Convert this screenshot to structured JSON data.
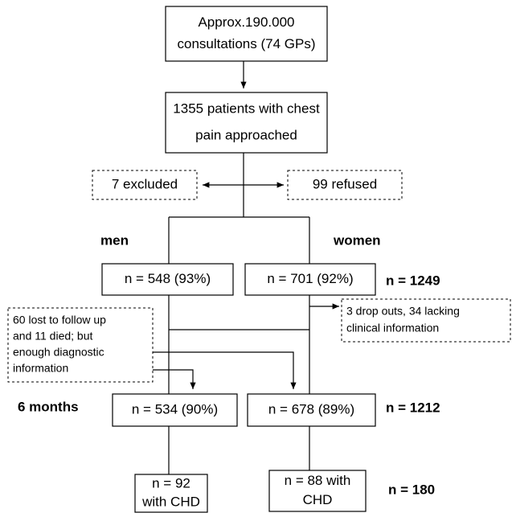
{
  "nodes": [
    {
      "lines": [
        "Approx.190.000",
        "consultations (74 GPs)"
      ]
    },
    {
      "lines": [
        "1355 patients with chest",
        "pain approached"
      ]
    },
    {
      "lines": [
        "7 excluded"
      ]
    },
    {
      "lines": [
        "99 refused"
      ]
    },
    {
      "lines": [
        "n = 548 (93%)"
      ]
    },
    {
      "lines": [
        "n = 701 (92%)"
      ]
    },
    {
      "lines": [
        "3 drop outs, 34 lacking",
        "clinical information"
      ]
    },
    {
      "lines": [
        "60 lost to follow up",
        "and 11 died; but",
        "enough diagnostic",
        "information"
      ]
    },
    {
      "lines": [
        "n = 534 (90%)"
      ]
    },
    {
      "lines": [
        "n = 678 (89%)"
      ]
    },
    {
      "lines": [
        "n = 92",
        "with CHD"
      ]
    },
    {
      "lines": [
        "n = 88 with",
        "CHD"
      ]
    }
  ],
  "labels": [
    "men",
    "women",
    "n = 1249",
    "6 months",
    "n = 1212",
    "n = 180"
  ]
}
